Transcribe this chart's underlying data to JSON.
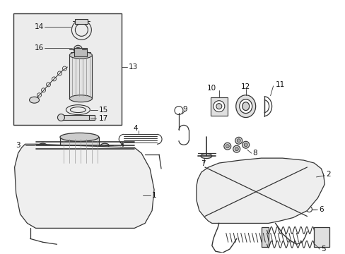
{
  "bg_color": "#ffffff",
  "line_color": "#333333",
  "label_color": "#111111",
  "box_bg": "#ececec",
  "fig_width": 4.89,
  "fig_height": 3.6,
  "dpi": 100,
  "lw": 0.8,
  "fs": 7.5
}
